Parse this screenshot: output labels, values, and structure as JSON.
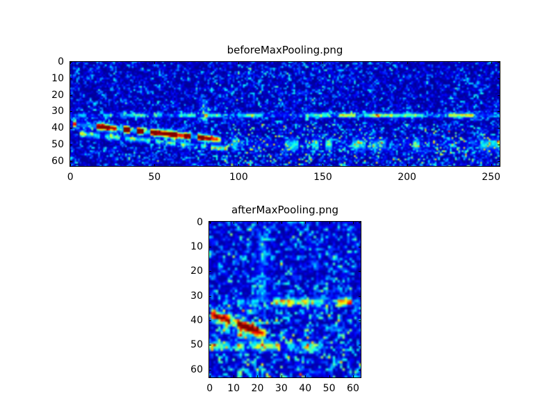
{
  "style": {
    "figure_background": "#ffffff",
    "text_color": "#000000"
  },
  "chart_data": [
    {
      "type": "heatmap",
      "title": "beforeMaxPooling.png",
      "colormap": "jet",
      "rows": 64,
      "cols": 256,
      "xlim": [
        0,
        255
      ],
      "ylim": [
        63,
        0
      ],
      "x_ticks": [
        0,
        50,
        100,
        150,
        200,
        250
      ],
      "y_ticks": [
        0,
        10,
        20,
        30,
        40,
        50,
        60
      ],
      "description": "Spectrogram-like image on dark blue (jet colormap, low values) with a bright red/yellow descending chirp from about (col 2, row 38) to (col 89, row 47), a faint cyan echo just below it, an intermittent cyan horizontal band near row 32 across the full width, and scattered cyan speckle concentrated around rows 44-56 in columns 95-255.",
      "generation": {
        "seed": 42,
        "base": 0.02,
        "noise": 0.45,
        "noise_pow": 3.2,
        "features": [
          {
            "kind": "chirp",
            "x0": 2,
            "y0": 37.5,
            "x1": 89,
            "y1": 47,
            "sigma": 1.25,
            "intensity": 1.15,
            "dash": 0.28,
            "seg": 4,
            "profile": "mid"
          },
          {
            "kind": "chirp",
            "x0": 6,
            "y0": 43.5,
            "x1": 93,
            "y1": 52.5,
            "sigma": 1.1,
            "intensity": 0.36,
            "dash": 0.45,
            "seg": 3
          },
          {
            "kind": "hband",
            "y": 32.3,
            "x0": 0,
            "x1": 255,
            "sigma": 0.9,
            "intensity": 0.42,
            "dash": 0.5,
            "seg": 5,
            "grad": true
          },
          {
            "kind": "hband",
            "y": 50,
            "x0": 95,
            "x1": 255,
            "sigma": 2.4,
            "intensity": 0.26,
            "dash": 0.6,
            "seg": 4
          },
          {
            "kind": "speckle",
            "x0": 92,
            "y0": 38,
            "x1": 255,
            "y1": 63,
            "density": 0.1,
            "intensity": 0.34
          },
          {
            "kind": "speckle",
            "x0": 85,
            "y0": 4,
            "x1": 180,
            "y1": 26,
            "density": 0.06,
            "intensity": 0.2
          },
          {
            "kind": "vband",
            "x": 80,
            "y0": 23,
            "y1": 37,
            "sigma": 1.6,
            "intensity": 0.16
          },
          {
            "kind": "speckle",
            "x0": 0,
            "y0": 52,
            "x1": 95,
            "y1": 63,
            "density": 0.07,
            "intensity": 0.25
          }
        ]
      }
    },
    {
      "type": "heatmap",
      "title": "afterMaxPooling.png",
      "colormap": "jet",
      "rows": 64,
      "cols": 64,
      "xlim": [
        0,
        63
      ],
      "ylim": [
        63,
        0
      ],
      "x_ticks": [
        0,
        10,
        20,
        30,
        40,
        50,
        60
      ],
      "y_ticks": [
        0,
        10,
        20,
        30,
        40,
        50,
        60
      ],
      "description": "Max-pooled version of the spectrogram: bright red/yellow chirp from about (col 1, row 38) to (col 23, row 45), intermittent cyan horizontal band near row 32, a cyan band near row 50 over columns 0-46, and denser cyan speckle over the lower half.",
      "generation": {
        "seed": 99,
        "base": 0.03,
        "noise": 0.5,
        "noise_pow": 3.0,
        "features": [
          {
            "kind": "chirp",
            "x0": 1,
            "y0": 37.5,
            "x1": 23,
            "y1": 45.5,
            "sigma": 1.3,
            "intensity": 1.15,
            "dash": 0.2,
            "seg": 3,
            "profile": "mid"
          },
          {
            "kind": "chirp",
            "x0": 4,
            "y0": 43,
            "x1": 26,
            "y1": 50,
            "sigma": 1.0,
            "intensity": 0.3,
            "dash": 0.5,
            "seg": 3
          },
          {
            "kind": "hband",
            "y": 32.3,
            "x0": 4,
            "x1": 63,
            "sigma": 0.95,
            "intensity": 0.42,
            "dash": 0.45,
            "seg": 3,
            "grad": true
          },
          {
            "kind": "hband",
            "y": 50.5,
            "x0": 0,
            "x1": 46,
            "sigma": 1.15,
            "intensity": 0.4,
            "dash": 0.4,
            "seg": 3
          },
          {
            "kind": "vband",
            "x": 22,
            "y0": 6,
            "y1": 32,
            "sigma": 1.3,
            "intensity": 0.15
          },
          {
            "kind": "speckle",
            "x0": 0,
            "y0": 33,
            "x1": 63,
            "y1": 63,
            "density": 0.12,
            "intensity": 0.3
          },
          {
            "kind": "speckle",
            "x0": 8,
            "y0": 3,
            "x1": 60,
            "y1": 28,
            "density": 0.07,
            "intensity": 0.2
          }
        ]
      }
    }
  ]
}
